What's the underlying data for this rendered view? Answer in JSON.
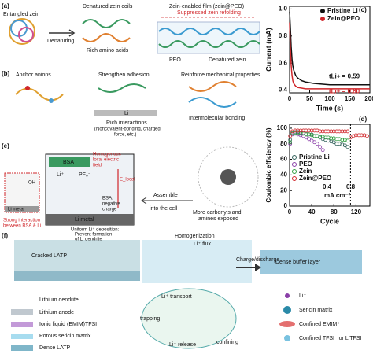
{
  "panels": {
    "a": {
      "label": "(a)",
      "entangled": "Entangled zein",
      "denatured": "Denatured zein coils",
      "film": "Zein-enabled film (zein@PEO)",
      "denaturing": "Denaturing",
      "amino": "Rich amino acids",
      "suppressed": "Suppressed zein refolding",
      "peo": "PEO",
      "denatured_zein": "Denatured zein"
    },
    "b": {
      "label": "(b)",
      "anchor": "Anchor anions",
      "adhesion": "Strengthen adhesion",
      "reinforce": "Reinforce mechanical properties",
      "li": "Li",
      "rich": "Rich interactions",
      "rich2": "(Noncovalent-bonding, charged",
      "rich3": "force, etc.)",
      "inter": "Intermolecular bonding"
    },
    "e": {
      "label": "(e)",
      "bsa": "BSA",
      "li_ion": "Li⁺",
      "pf6": "PF₆⁻",
      "homo1": "Homogenous",
      "homo2": "local electric",
      "homo3": "field",
      "elocal": "E_local",
      "neg1": "BSA:",
      "neg2": "negative",
      "neg3": "charge",
      "li_metal": "Li metal",
      "li_metal_left": "Li metal",
      "oh": "OH",
      "strong1": "Strong interaction",
      "strong2": "between BSA & Li",
      "uni1": "Uniform Li⁺ deposition:",
      "uni2": "Prevent formation",
      "uni3": "of Li dendrite",
      "assemble1": "Assemble",
      "assemble2": "into the cell",
      "more1": "More carbonyls and",
      "more2": "amines exposed"
    },
    "f": {
      "label": "(f)",
      "cracked": "Cracked LATP",
      "homog1": "Homogenization",
      "homog2": "Li⁺ flux",
      "charge": "Charge/discharge",
      "dense_buffer": "Dense buffer layer",
      "leg_dendrite": "Lithium dendrite",
      "leg_anode": "Lithium anode",
      "leg_il": "Ionic liquid (EMIM)TFSI",
      "leg_porous": "Porous sericin matrix",
      "leg_latp": "Dense LATP",
      "transport": "Li⁺ transport",
      "release": "Li⁺ release",
      "trapping": "trapping",
      "confining": "confining",
      "leg_li": "Li⁺",
      "leg_sericin": "Sericin matrix",
      "leg_emim": "Confined EMIM⁺",
      "leg_tfsi": "Confined TFSI⁻ or LiTFSI"
    }
  },
  "chart_data": [
    {
      "type": "line",
      "label": "(c)",
      "xlabel": "Time (s)",
      "ylabel": "Current (mA)",
      "x": [
        0,
        2,
        4,
        6,
        8,
        10,
        15,
        20,
        30,
        40,
        60,
        80,
        100,
        125,
        150,
        175,
        200
      ],
      "series": [
        {
          "name": "Pristine Li",
          "color": "#111111",
          "values": [
            0.98,
            0.86,
            0.72,
            0.63,
            0.58,
            0.55,
            0.51,
            0.49,
            0.47,
            0.46,
            0.45,
            0.445,
            0.44,
            0.44,
            0.44,
            0.44,
            0.44
          ]
        },
        {
          "name": "Zein@PEO",
          "color": "#d0262a",
          "values": [
            0.9,
            0.7,
            0.58,
            0.51,
            0.47,
            0.45,
            0.43,
            0.42,
            0.415,
            0.41,
            0.41,
            0.41,
            0.41,
            0.41,
            0.41,
            0.41,
            0.41
          ]
        }
      ],
      "annotations": [
        "tLi+ = 0.59",
        "tLi+ = 0.80"
      ],
      "xlim": [
        0,
        200
      ],
      "xticks": [
        0,
        50,
        100,
        150,
        200
      ],
      "ylim": [
        0.38,
        1.02
      ],
      "yticks": [
        0.4,
        0.6,
        0.8,
        {
          "value": 1,
          "label": "1.0"
        }
      ]
    },
    {
      "type": "scatter",
      "label": "(d)",
      "xlabel": "Cycle",
      "ylabel": "Coulombic efficiency (%)",
      "x": [
        1,
        5,
        10,
        15,
        20,
        25,
        30,
        35,
        40,
        45,
        50,
        55,
        60,
        65,
        70,
        75,
        80,
        85,
        90,
        95,
        100,
        105,
        110,
        115,
        120,
        125,
        130,
        135,
        140
      ],
      "series": [
        {
          "name": "Pristine Li",
          "color": "#2f5f58",
          "values": [
            85,
            94,
            95,
            95,
            94,
            94,
            93,
            92,
            92,
            90,
            90,
            88,
            86,
            85,
            84,
            83,
            82,
            80,
            80,
            79,
            78,
            76,
            null,
            null,
            null,
            null,
            null,
            null,
            null
          ]
        },
        {
          "name": "PEO",
          "color": "#8a3fa8",
          "values": [
            80,
            92,
            93,
            92,
            91,
            90,
            88,
            86,
            84,
            82,
            80,
            76,
            72,
            null,
            null,
            null,
            null,
            null,
            null,
            null,
            null,
            null,
            null,
            null,
            null,
            null,
            null,
            null,
            null
          ]
        },
        {
          "name": "Zein",
          "color": "#2e9e3e",
          "values": [
            82,
            93,
            94,
            94,
            93,
            93,
            92,
            92,
            91,
            90,
            90,
            89,
            89,
            88,
            88,
            87,
            87,
            86,
            86,
            85,
            85,
            84,
            null,
            null,
            null,
            null,
            null,
            null,
            null
          ]
        },
        {
          "name": "Zein@PEO",
          "color": "#d0262a",
          "values": [
            90,
            96,
            97,
            97,
            97,
            97,
            97,
            97,
            97,
            97,
            97,
            96,
            96,
            96,
            96,
            96,
            96,
            96,
            96,
            96,
            96,
            96,
            88,
            90,
            91,
            91,
            91,
            91,
            90
          ]
        }
      ],
      "annotations": [
        "0.4",
        "0.8",
        "mA cm⁻²"
      ],
      "xlim": [
        0,
        145
      ],
      "xticks": [
        0,
        40,
        80,
        120
      ],
      "ylim": [
        0,
        105
      ],
      "yticks": [
        0,
        20,
        40,
        60,
        80,
        100
      ]
    }
  ]
}
